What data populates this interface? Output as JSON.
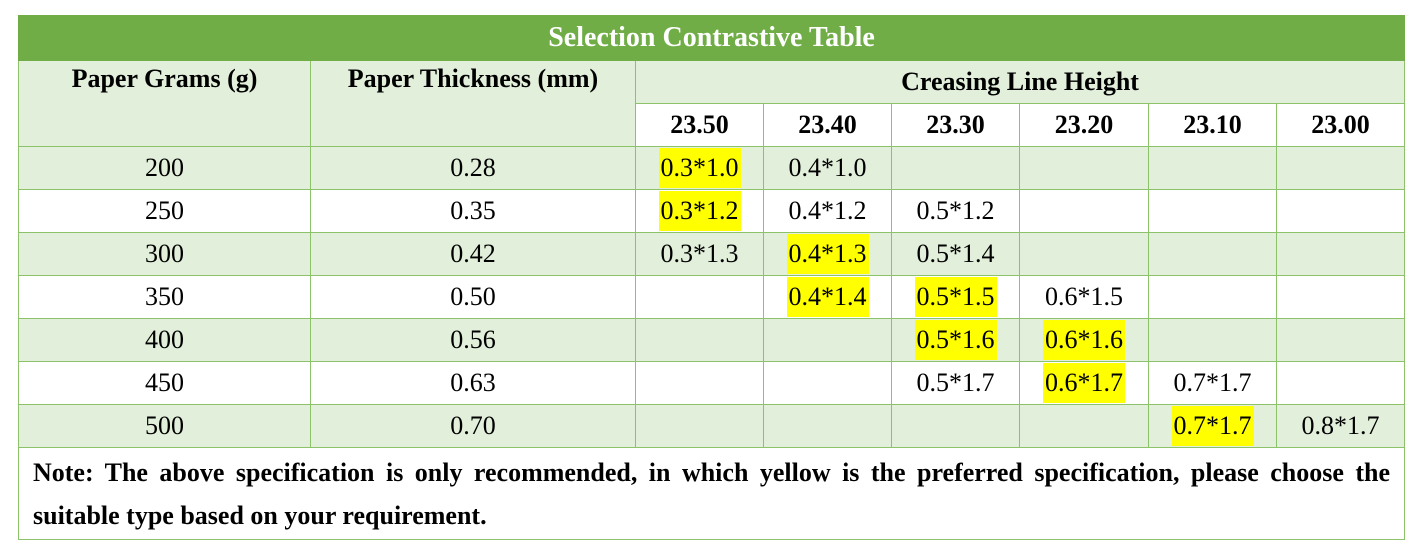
{
  "title": "Selection Contrastive Table",
  "headers": {
    "grams": "Paper Grams (g)",
    "thickness": "Paper Thickness (mm)",
    "creasing": "Creasing Line Height"
  },
  "heights": [
    "23.50",
    "23.40",
    "23.30",
    "23.20",
    "23.10",
    "23.00"
  ],
  "highlight_color": "#ffff00",
  "header_color": "#70ad47",
  "band_color": "#e2efda",
  "rows": [
    {
      "grams": "200",
      "thickness": "0.28",
      "cells": [
        {
          "text": "0.3*1.0",
          "preferred": true
        },
        {
          "text": "0.4*1.0",
          "preferred": false
        },
        {
          "text": "",
          "preferred": false
        },
        {
          "text": "",
          "preferred": false
        },
        {
          "text": "",
          "preferred": false
        },
        {
          "text": "",
          "preferred": false
        }
      ]
    },
    {
      "grams": "250",
      "thickness": "0.35",
      "cells": [
        {
          "text": "0.3*1.2",
          "preferred": true
        },
        {
          "text": "0.4*1.2",
          "preferred": false
        },
        {
          "text": "0.5*1.2",
          "preferred": false
        },
        {
          "text": "",
          "preferred": false
        },
        {
          "text": "",
          "preferred": false
        },
        {
          "text": "",
          "preferred": false
        }
      ]
    },
    {
      "grams": "300",
      "thickness": "0.42",
      "cells": [
        {
          "text": "0.3*1.3",
          "preferred": false
        },
        {
          "text": "0.4*1.3",
          "preferred": true
        },
        {
          "text": "0.5*1.4",
          "preferred": false
        },
        {
          "text": "",
          "preferred": false
        },
        {
          "text": "",
          "preferred": false
        },
        {
          "text": "",
          "preferred": false
        }
      ]
    },
    {
      "grams": "350",
      "thickness": "0.50",
      "cells": [
        {
          "text": "",
          "preferred": false
        },
        {
          "text": "0.4*1.4",
          "preferred": true
        },
        {
          "text": "0.5*1.5",
          "preferred": true
        },
        {
          "text": "0.6*1.5",
          "preferred": false
        },
        {
          "text": "",
          "preferred": false
        },
        {
          "text": "",
          "preferred": false
        }
      ]
    },
    {
      "grams": "400",
      "thickness": "0.56",
      "cells": [
        {
          "text": "",
          "preferred": false
        },
        {
          "text": "",
          "preferred": false
        },
        {
          "text": "0.5*1.6",
          "preferred": true
        },
        {
          "text": "0.6*1.6",
          "preferred": true
        },
        {
          "text": "",
          "preferred": false
        },
        {
          "text": "",
          "preferred": false
        }
      ]
    },
    {
      "grams": "450",
      "thickness": "0.63",
      "cells": [
        {
          "text": "",
          "preferred": false
        },
        {
          "text": "",
          "preferred": false
        },
        {
          "text": "0.5*1.7",
          "preferred": false
        },
        {
          "text": "0.6*1.7",
          "preferred": true
        },
        {
          "text": "0.7*1.7",
          "preferred": false
        },
        {
          "text": "",
          "preferred": false
        }
      ]
    },
    {
      "grams": "500",
      "thickness": "0.70",
      "cells": [
        {
          "text": "",
          "preferred": false
        },
        {
          "text": "",
          "preferred": false
        },
        {
          "text": "",
          "preferred": false
        },
        {
          "text": "",
          "preferred": false
        },
        {
          "text": "0.7*1.7",
          "preferred": true
        },
        {
          "text": "0.8*1.7",
          "preferred": false
        }
      ]
    }
  ],
  "note": "Note: The above specification is only recommended, in which yellow is the preferred specification, please choose the suitable type based on your requirement."
}
